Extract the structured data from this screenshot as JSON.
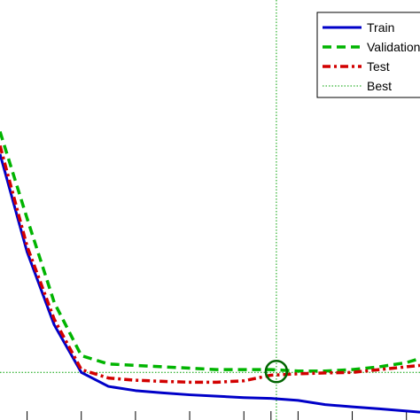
{
  "chart_data": {
    "type": "line",
    "title": "",
    "xlabel": "",
    "ylabel": "",
    "xlim": [
      0,
      15.5
    ],
    "ylim": [
      0.0,
      1.5
    ],
    "xtick_positions": [
      1,
      3,
      5,
      7,
      9,
      10,
      11,
      13,
      15
    ],
    "grid": false,
    "legend": {
      "placement": "top-right",
      "entries": [
        "Train",
        "Validation",
        "Test",
        "Best"
      ]
    },
    "colors": {
      "train": "#0000c8",
      "validation": "#00b400",
      "test": "#d20000",
      "best": "#00a000"
    },
    "series": [
      {
        "name": "Train",
        "style": "solid",
        "x": [
          0,
          1,
          2,
          3,
          4,
          5,
          6,
          7,
          8,
          9,
          10,
          11,
          12,
          13,
          14,
          15,
          15.5
        ],
        "y": [
          0.95,
          0.6,
          0.34,
          0.17,
          0.12,
          0.105,
          0.097,
          0.09,
          0.085,
          0.08,
          0.077,
          0.07,
          0.055,
          0.047,
          0.04,
          0.032,
          0.028
        ]
      },
      {
        "name": "Validation",
        "style": "dashed",
        "x": [
          0,
          1,
          2,
          3,
          4,
          5,
          6,
          7,
          8,
          9,
          10,
          11,
          12,
          13,
          14,
          15,
          15.5
        ],
        "y": [
          1.03,
          0.72,
          0.42,
          0.23,
          0.2,
          0.195,
          0.19,
          0.185,
          0.18,
          0.18,
          0.18,
          0.175,
          0.175,
          0.18,
          0.19,
          0.205,
          0.22
        ]
      },
      {
        "name": "Test",
        "style": "dashdot",
        "x": [
          0,
          1,
          2,
          3,
          4,
          5,
          6,
          7,
          8,
          9,
          10,
          11,
          12,
          13,
          14,
          15,
          15.5
        ],
        "y": [
          0.98,
          0.62,
          0.36,
          0.18,
          0.15,
          0.142,
          0.138,
          0.135,
          0.135,
          0.14,
          0.16,
          0.165,
          0.168,
          0.17,
          0.18,
          0.19,
          0.195
        ]
      }
    ],
    "best": {
      "name": "Best",
      "x": 10.2,
      "y": 0.17
    }
  }
}
